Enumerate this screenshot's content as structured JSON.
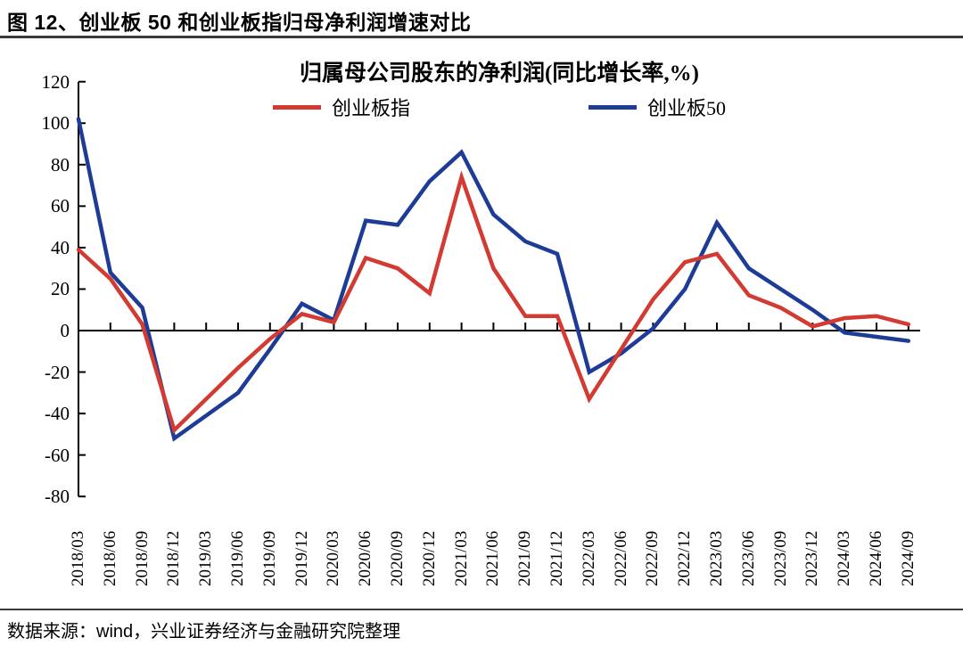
{
  "figure_title": "图 12、创业板 50 和创业板指归母净利润增速对比",
  "source_note": "数据来源：wind，兴业证券经济与金融研究院整理",
  "colors": {
    "axis": "#000000",
    "red_series": "#d23a32",
    "blue_series": "#1e3c96",
    "rule": "#3a3a3a"
  },
  "chart_data": {
    "type": "line",
    "title": "归属母公司股东的净利润(同比增长率,%)",
    "xlabel": "",
    "ylabel": "",
    "ylim": [
      -80,
      120
    ],
    "ytick_step": 20,
    "grid": false,
    "legend_position": "top",
    "categories": [
      "2018/03",
      "2018/06",
      "2018/09",
      "2018/12",
      "2019/03",
      "2019/06",
      "2019/09",
      "2019/12",
      "2020/03",
      "2020/06",
      "2020/09",
      "2020/12",
      "2021/03",
      "2021/06",
      "2021/09",
      "2021/12",
      "2022/03",
      "2022/06",
      "2022/09",
      "2022/12",
      "2023/03",
      "2023/06",
      "2023/09",
      "2023/12",
      "2024/03",
      "2024/06",
      "2024/09"
    ],
    "series": [
      {
        "name": "创业板指",
        "color": "#d23a32",
        "values": [
          39,
          25,
          3,
          -48,
          -33,
          -18,
          -4,
          8,
          4,
          35,
          30,
          18,
          74,
          30,
          7,
          7,
          -33,
          -9,
          15,
          33,
          37,
          17,
          11,
          2,
          6,
          7,
          3
        ]
      },
      {
        "name": "创业板50",
        "color": "#1e3c96",
        "values": [
          102,
          28,
          11,
          -52,
          -41,
          -30,
          -9,
          13,
          5,
          53,
          51,
          72,
          86,
          56,
          43,
          37,
          -20,
          -11,
          1,
          20,
          52,
          30,
          20,
          10,
          -1,
          -3,
          -5
        ]
      }
    ]
  }
}
